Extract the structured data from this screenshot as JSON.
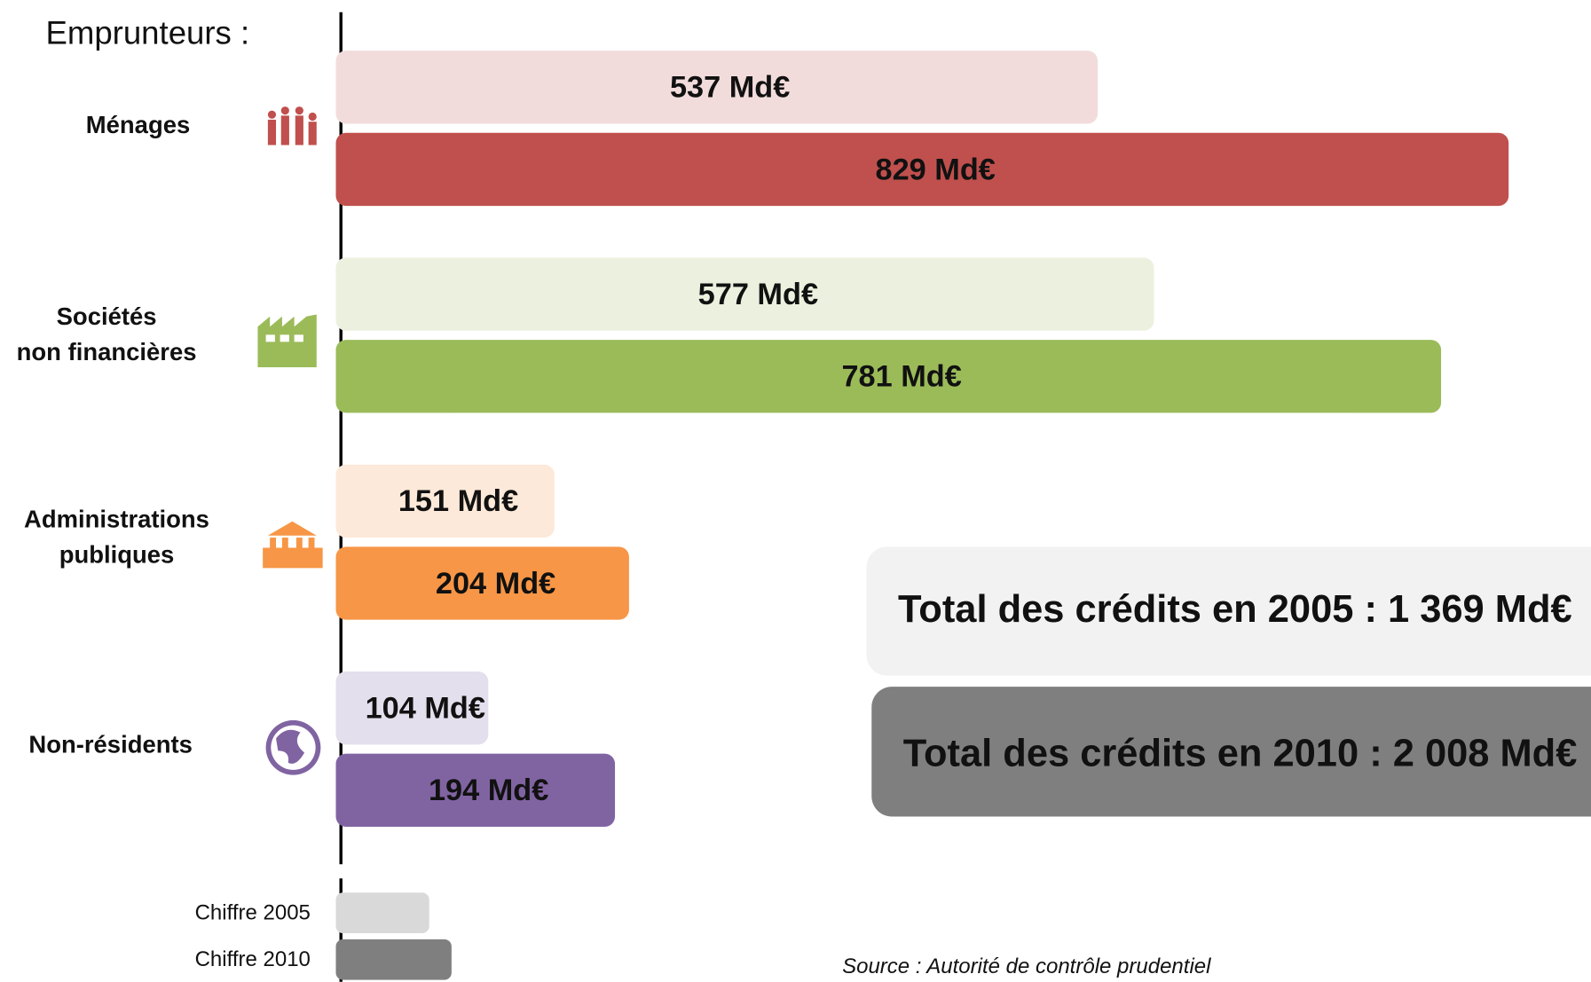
{
  "chart_data": {
    "type": "bar",
    "orientation": "horizontal",
    "header": "Emprunteurs :",
    "categories": [
      "Ménages",
      "Sociétés\nnon financières",
      "Administrations\npubliques",
      "Non-résidents"
    ],
    "series": [
      {
        "name": "Chiffre 2005",
        "color": "#d9d9d9",
        "bar_colors": [
          "#f2dcdb",
          "#ebf1de",
          "#fde9d9",
          "#e4dfec"
        ],
        "values": [
          537,
          577,
          151,
          104
        ],
        "value_labels": [
          "537 Md€",
          "577 Md€",
          "151 Md€",
          "104 Md€"
        ]
      },
      {
        "name": "Chiffre 2010",
        "color": "#7f7f7f",
        "bar_colors": [
          "#c0504d",
          "#9bbb59",
          "#f79646",
          "#8064a2"
        ],
        "values": [
          829,
          781,
          204,
          194
        ],
        "value_labels": [
          "829 Md€",
          "781 Md€",
          "204 Md€",
          "194 Md€"
        ]
      }
    ],
    "xlim": [
      0,
      1000
    ],
    "annotations": [
      "Total des crédits en 2005 : 1 369 Md€",
      "Total des crédits en 2010 : 2 008 Md€"
    ],
    "source": "Source : Autorité de contrôle prudentiel"
  }
}
